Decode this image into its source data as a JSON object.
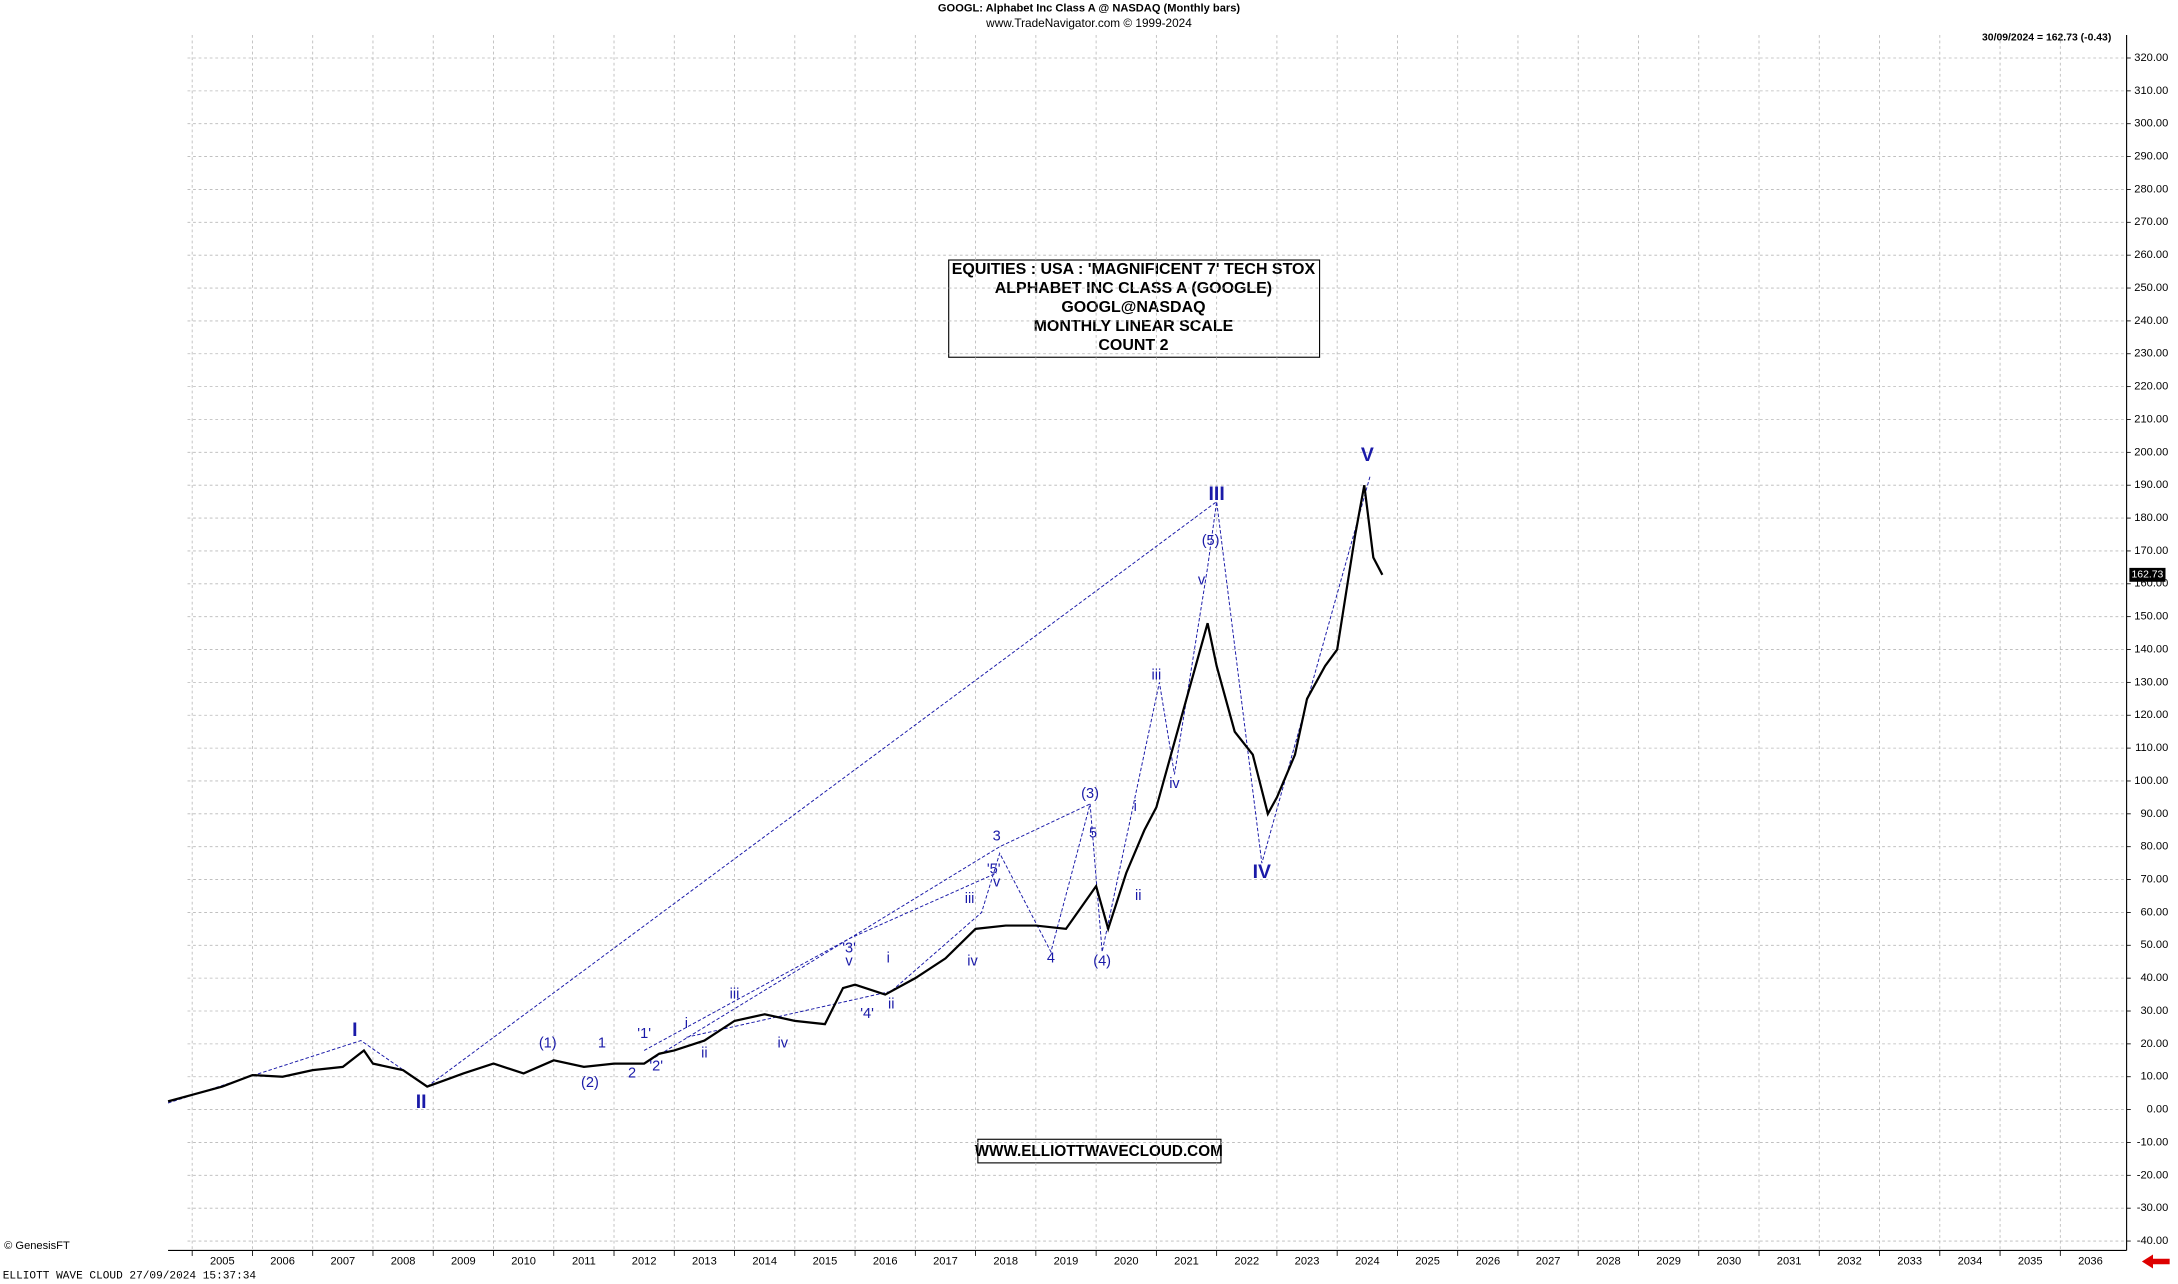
{
  "chart_data": {
    "type": "line",
    "title": "GOOGL:  Alphabet Inc Class A @ NASDAQ  (Monthly bars)",
    "subtitle": "www.TradeNavigator.com © 1999-2024",
    "header_right": "30/09/2024 = 162.73 (-0.43)",
    "info_box": [
      "EQUITIES : USA : 'MAGNIFICENT 7' TECH STOX",
      "ALPHABET INC CLASS A (GOOGLE)",
      "GOOGL@NASDAQ",
      "MONTHLY LINEAR SCALE",
      "COUNT 2"
    ],
    "website": "WWW.ELLIOTTWAVECLOUD.COM",
    "copyright": "© GenesisFT",
    "footer": "ELLIOTT WAVE CLOUD   27/09/2024 15:37:34",
    "xlim": [
      2004.6,
      2037.1
    ],
    "ylim": [
      -42,
      327
    ],
    "xticks": [
      2005,
      2006,
      2007,
      2008,
      2009,
      2010,
      2011,
      2012,
      2013,
      2014,
      2015,
      2016,
      2017,
      2018,
      2019,
      2020,
      2021,
      2022,
      2023,
      2024,
      2025,
      2026,
      2027,
      2028,
      2029,
      2030,
      2031,
      2032,
      2033,
      2034,
      2035,
      2036
    ],
    "yticks": [
      {
        "value": -40,
        "label": "-40.00"
      },
      {
        "value": -30,
        "label": "-30.00"
      },
      {
        "value": -20,
        "label": "-20.00"
      },
      {
        "value": -10,
        "label": "-10.00"
      },
      {
        "value": 0,
        "label": "0.00"
      },
      {
        "value": 10,
        "label": "10.00"
      },
      {
        "value": 20,
        "label": "20.00"
      },
      {
        "value": 30,
        "label": "30.00"
      },
      {
        "value": 40,
        "label": "40.00"
      },
      {
        "value": 50,
        "label": "50.00"
      },
      {
        "value": 60,
        "label": "60.00"
      },
      {
        "value": 70,
        "label": "70.00"
      },
      {
        "value": 80,
        "label": "80.00"
      },
      {
        "value": 90,
        "label": "90.00"
      },
      {
        "value": 100,
        "label": "100.00"
      },
      {
        "value": 110,
        "label": "110.00"
      },
      {
        "value": 120,
        "label": "120.00"
      },
      {
        "value": 130,
        "label": "130.00"
      },
      {
        "value": 140,
        "label": "140.00"
      },
      {
        "value": 150,
        "label": "150.00"
      },
      {
        "value": 160,
        "label": "160.00"
      },
      {
        "value": 170,
        "label": "170.00"
      },
      {
        "value": 180,
        "label": "180.00"
      },
      {
        "value": 190,
        "label": "190.00"
      },
      {
        "value": 200,
        "label": "200.00"
      },
      {
        "value": 210,
        "label": "210.00"
      },
      {
        "value": 220,
        "label": "220.00"
      },
      {
        "value": 230,
        "label": "230.00"
      },
      {
        "value": 240,
        "label": "240.00"
      },
      {
        "value": 250,
        "label": "250.00"
      },
      {
        "value": 260,
        "label": "260.00"
      },
      {
        "value": 270,
        "label": "270.00"
      },
      {
        "value": 280,
        "label": "280.00"
      },
      {
        "value": 290,
        "label": "290.00"
      },
      {
        "value": 300,
        "label": "300.00"
      },
      {
        "value": 310,
        "label": "310.00"
      },
      {
        "value": 320,
        "label": "320.00"
      }
    ],
    "grid": true,
    "series": [
      {
        "name": "GOOGL",
        "color": "#000000",
        "x": [
          2004.6,
          2005.0,
          2005.5,
          2006.0,
          2006.5,
          2007.0,
          2007.5,
          2007.85,
          2008.0,
          2008.5,
          2008.9,
          2009.2,
          2009.5,
          2010.0,
          2010.5,
          2011.0,
          2011.5,
          2012.0,
          2012.5,
          2012.75,
          2013.0,
          2013.5,
          2014.0,
          2014.5,
          2015.0,
          2015.5,
          2015.8,
          2016.0,
          2016.5,
          2017.0,
          2017.5,
          2018.0,
          2018.5,
          2019.0,
          2019.5,
          2020.0,
          2020.2,
          2020.5,
          2020.8,
          2021.0,
          2021.5,
          2021.85,
          2022.0,
          2022.3,
          2022.6,
          2022.85,
          2023.0,
          2023.3,
          2023.5,
          2023.8,
          2024.0,
          2024.3,
          2024.45,
          2024.6,
          2024.75
        ],
        "values": [
          2.5,
          4.5,
          7,
          10.5,
          10,
          12,
          13,
          18,
          14,
          12,
          7,
          9,
          11,
          14,
          11,
          15,
          13,
          14,
          14,
          17,
          18,
          21,
          27,
          29,
          27,
          26,
          37,
          38,
          35,
          40,
          46,
          55,
          56,
          56,
          55,
          68,
          55,
          72,
          85,
          92,
          125,
          148,
          135,
          115,
          108,
          90,
          95,
          108,
          125,
          135,
          140,
          175,
          190,
          168,
          162.73
        ]
      }
    ],
    "wave_color": "#1a1aa8",
    "wave_lines": [
      [
        [
          2004.6,
          2
        ],
        [
          2007.8,
          21
        ],
        [
          2008.9,
          7
        ],
        [
          2022.0,
          185
        ],
        [
          2022.75,
          75
        ],
        [
          2024.55,
          193
        ]
      ],
      [
        [
          2012.6,
          15
        ],
        [
          2018.4,
          80
        ],
        [
          2019.9,
          93
        ]
      ],
      [
        [
          2012.5,
          18
        ],
        [
          2015.9,
          52
        ],
        [
          2018.35,
          72
        ]
      ],
      [
        [
          2013.2,
          22
        ],
        [
          2016.6,
          36
        ],
        [
          2018.1,
          60
        ],
        [
          2018.4,
          78
        ],
        [
          2019.25,
          48
        ],
        [
          2019.9,
          93
        ],
        [
          2020.1,
          48
        ],
        [
          2021.05,
          130
        ],
        [
          2021.3,
          102
        ],
        [
          2021.85,
          165
        ],
        [
          2022.0,
          185
        ]
      ]
    ],
    "annotations": [
      {
        "text": "I",
        "x": 2007.7,
        "y": 24
      },
      {
        "text": "II",
        "x": 2008.8,
        "y": 2
      },
      {
        "text": "(1)",
        "x": 2010.9,
        "y": 20
      },
      {
        "text": "(2)",
        "x": 2011.6,
        "y": 8
      },
      {
        "text": "1",
        "x": 2011.8,
        "y": 20
      },
      {
        "text": "2",
        "x": 2012.3,
        "y": 11
      },
      {
        "text": "'1'",
        "x": 2012.5,
        "y": 23
      },
      {
        "text": "'2'",
        "x": 2012.7,
        "y": 13
      },
      {
        "text": "i",
        "x": 2013.2,
        "y": 26
      },
      {
        "text": "ii",
        "x": 2013.5,
        "y": 17
      },
      {
        "text": "iii",
        "x": 2014.0,
        "y": 35
      },
      {
        "text": "iv",
        "x": 2014.8,
        "y": 20
      },
      {
        "text": "'3'",
        "x": 2015.9,
        "y": 49
      },
      {
        "text": "v",
        "x": 2015.9,
        "y": 45
      },
      {
        "text": "'4'",
        "x": 2016.2,
        "y": 29
      },
      {
        "text": "i",
        "x": 2016.55,
        "y": 46
      },
      {
        "text": "ii",
        "x": 2016.6,
        "y": 32
      },
      {
        "text": "iii",
        "x": 2017.9,
        "y": 64
      },
      {
        "text": "iv",
        "x": 2017.95,
        "y": 45
      },
      {
        "text": "3",
        "x": 2018.35,
        "y": 83
      },
      {
        "text": "'5'",
        "x": 2018.3,
        "y": 73
      },
      {
        "text": "v",
        "x": 2018.35,
        "y": 69
      },
      {
        "text": "4",
        "x": 2019.25,
        "y": 46
      },
      {
        "text": "(3)",
        "x": 2019.9,
        "y": 96
      },
      {
        "text": "5",
        "x": 2019.95,
        "y": 84
      },
      {
        "text": "(4)",
        "x": 2020.1,
        "y": 45
      },
      {
        "text": "i",
        "x": 2020.65,
        "y": 92
      },
      {
        "text": "ii",
        "x": 2020.7,
        "y": 65
      },
      {
        "text": "iii",
        "x": 2021.0,
        "y": 132
      },
      {
        "text": "iv",
        "x": 2021.3,
        "y": 99
      },
      {
        "text": "v",
        "x": 2021.75,
        "y": 161
      },
      {
        "text": "(5)",
        "x": 2021.9,
        "y": 173
      },
      {
        "text": "III",
        "x": 2022.0,
        "y": 187
      },
      {
        "text": "IV",
        "x": 2022.75,
        "y": 72
      },
      {
        "text": "V",
        "x": 2024.5,
        "y": 199
      }
    ]
  }
}
